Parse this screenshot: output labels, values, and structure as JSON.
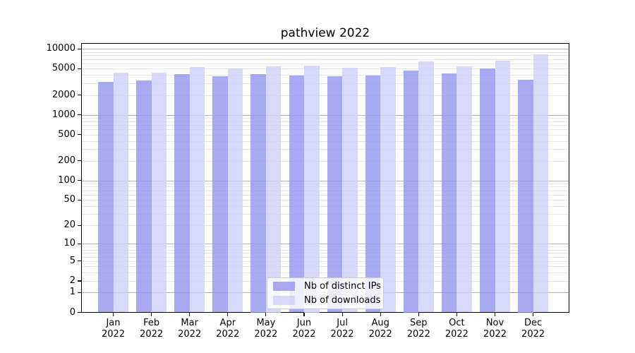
{
  "chart_data": {
    "type": "bar",
    "title": "pathview 2022",
    "categories": [
      "Jan 2022",
      "Feb 2022",
      "Mar 2022",
      "Apr 2022",
      "May 2022",
      "Jun 2022",
      "Jul 2022",
      "Aug 2022",
      "Sep 2022",
      "Oct 2022",
      "Nov 2022",
      "Dec 2022"
    ],
    "series": [
      {
        "name": "Nb of distinct IPs",
        "color": "rgba(148,148,237,0.8)",
        "values": [
          3180,
          3340,
          4110,
          3820,
          4140,
          3910,
          3880,
          3970,
          4690,
          4220,
          5010,
          3400
        ]
      },
      {
        "name": "Nb of downloads",
        "color": "rgba(206,206,246,0.8)",
        "values": [
          4320,
          4390,
          5270,
          5010,
          5440,
          5570,
          5210,
          5340,
          6410,
          5460,
          6670,
          8210
        ]
      }
    ],
    "xlabel": "",
    "ylabel": "",
    "yscale": "log1p",
    "yticks": [
      0,
      1,
      2,
      5,
      10,
      20,
      50,
      100,
      200,
      500,
      1000,
      2000,
      5000,
      10000
    ],
    "ylim": [
      0,
      12270
    ],
    "grid": {
      "major_color": "#b3b3b3",
      "minor_color": "#e7e7e7",
      "majors": [
        1,
        10,
        100,
        1000,
        10000
      ]
    },
    "legend_position": "lower center"
  }
}
